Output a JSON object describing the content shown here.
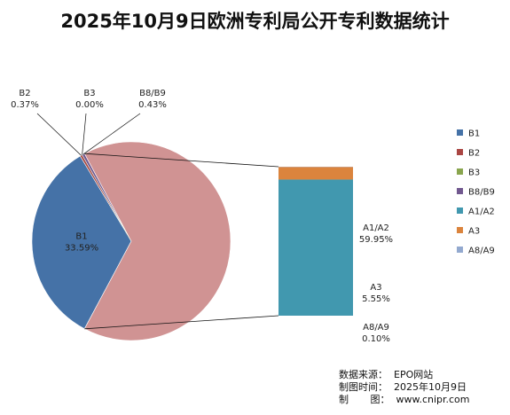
{
  "chart_data": {
    "type": "pie",
    "title": "2025年10月9日欧洲专利局公开专利数据统计",
    "subtype": "bar-of-pie",
    "categories": [
      "B1",
      "B2",
      "B3",
      "B8/B9",
      "A1/A2",
      "A3",
      "A8/A9"
    ],
    "values": [
      33.59,
      0.37,
      0.0,
      0.43,
      59.95,
      5.55,
      0.1
    ],
    "labels": [
      "33.59%",
      "0.37%",
      "0.00%",
      "0.43%",
      "59.95%",
      "5.55%",
      "0.10%"
    ],
    "colors": [
      "#4572A7",
      "#AA4643",
      "#89A54E",
      "#71588F",
      "#4198AF",
      "#DB843D",
      "#93A9CF"
    ],
    "pie_other_color": "#D09393",
    "breakout_categories": [
      "A1/A2",
      "A3",
      "A8/A9"
    ],
    "legend_position": "right"
  },
  "footer": {
    "source": "数据来源：  EPO网站",
    "time": "制图时间：  2025年10月9日",
    "maker": "制       图：  www.cnipr.com"
  }
}
